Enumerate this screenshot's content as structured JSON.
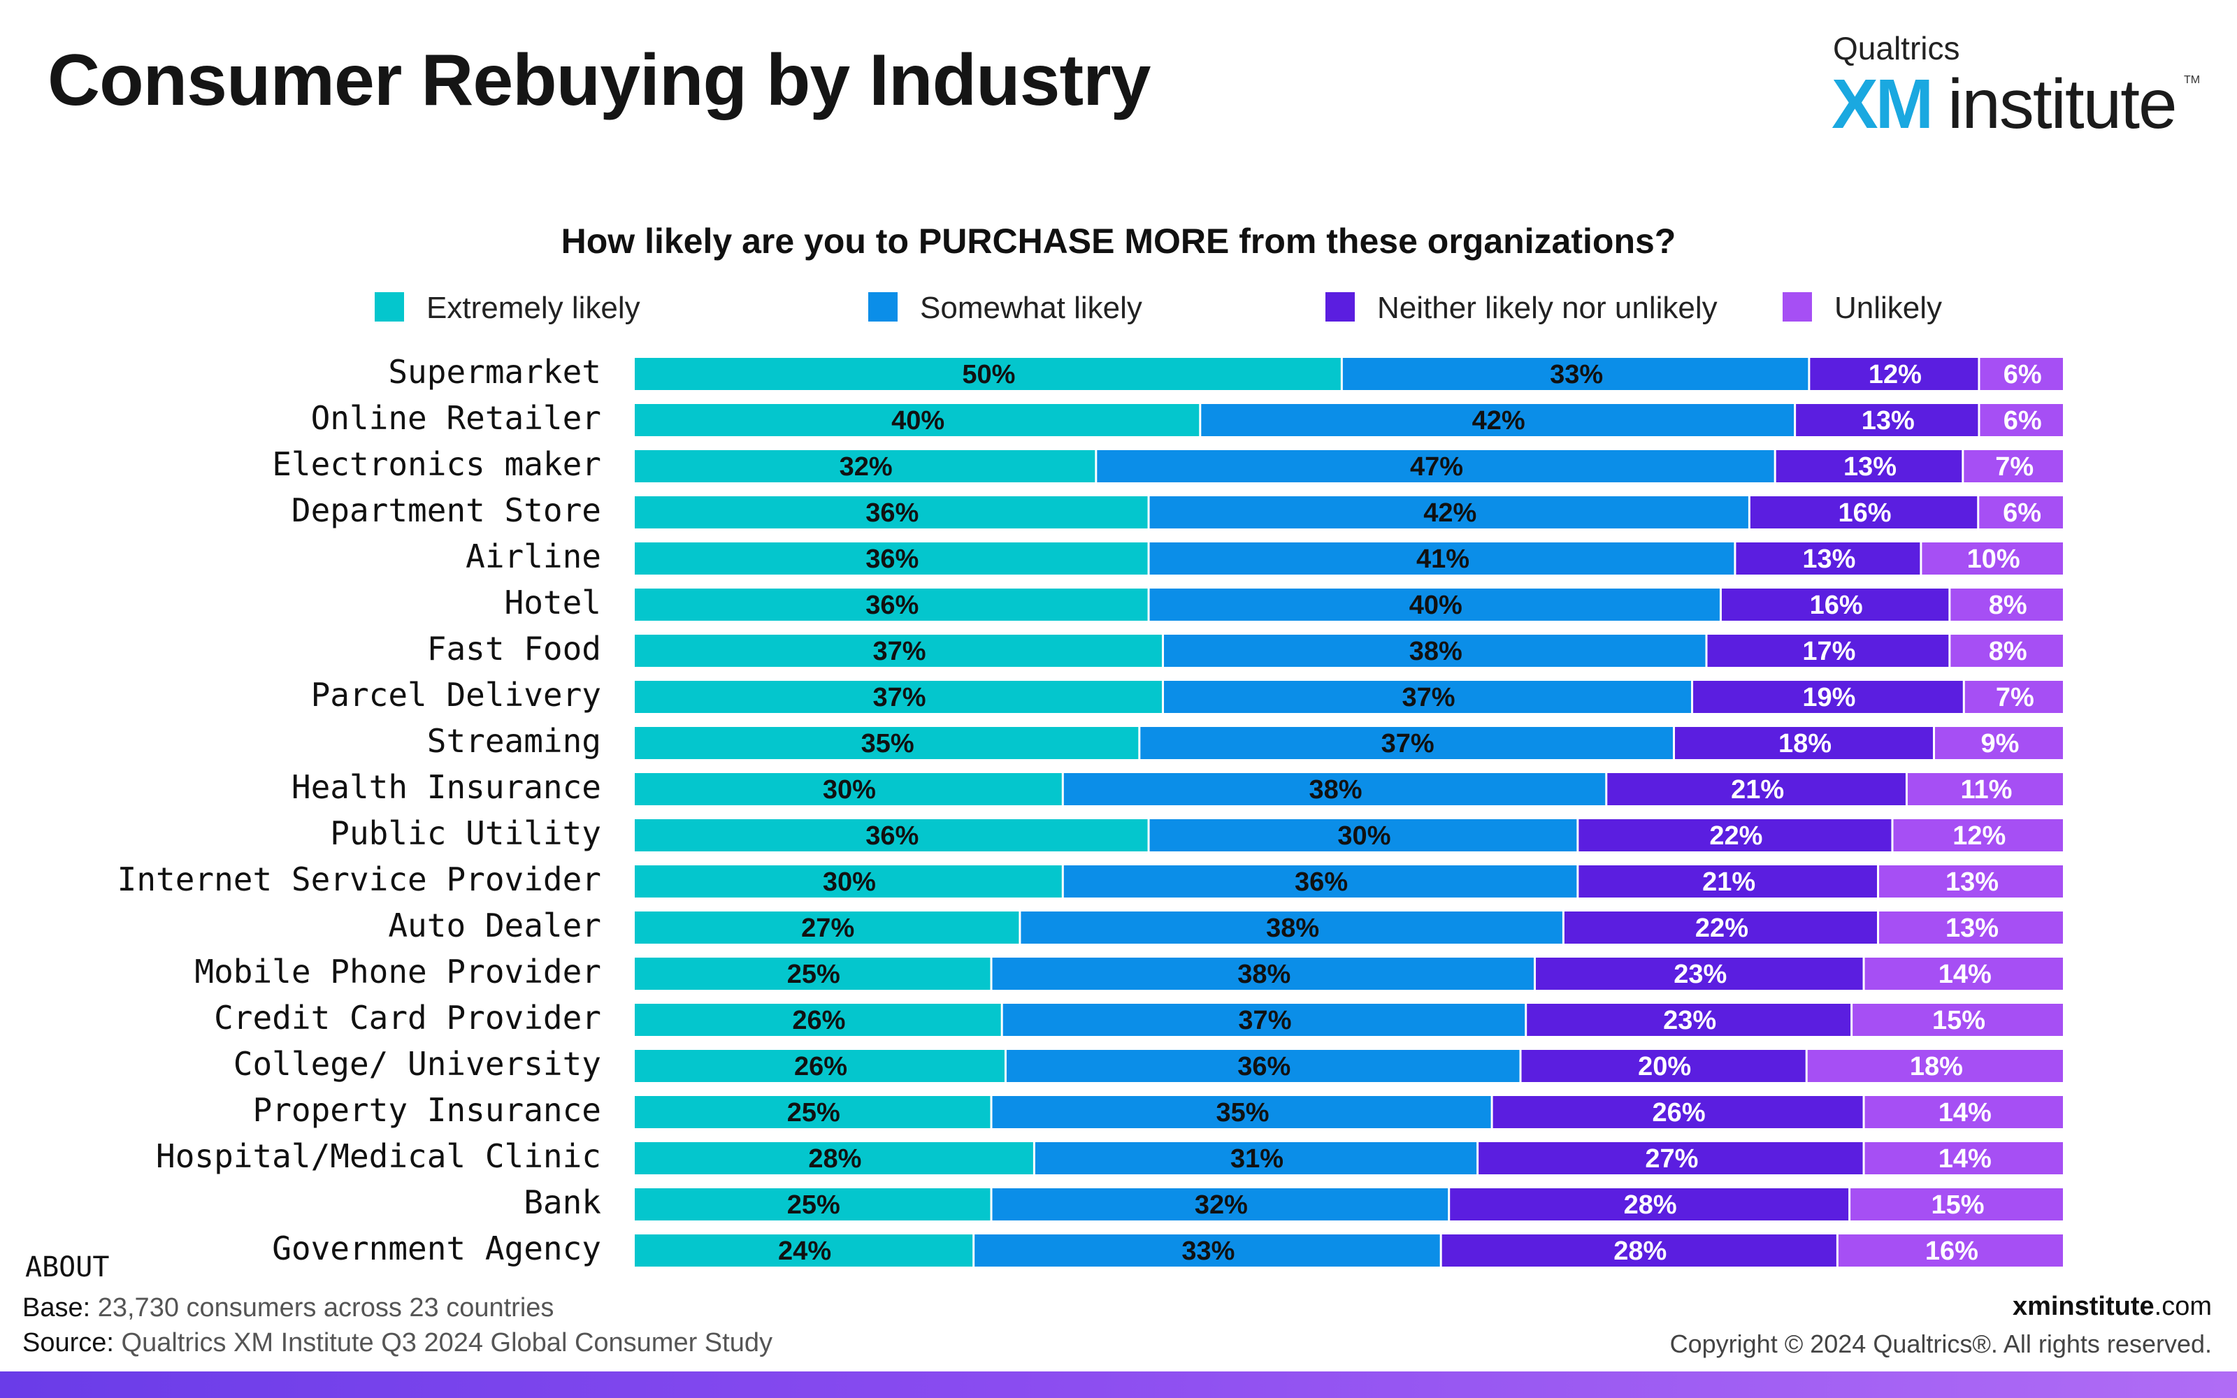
{
  "page": {
    "title": "Consumer Rebuying by Industry",
    "about_label": "ABOUT",
    "base_label": "Base:",
    "base_text": "23,730 consumers across 23 countries",
    "source_label": "Source:",
    "source_text": "Qualtrics XM Institute Q3 2024 Global Consumer Study",
    "site_bold": "xminstitute",
    "site_rest": ".com",
    "copyright": "Copyright © 2024 Qualtrics®. All rights reserved."
  },
  "logo": {
    "small_text": "Qualtrics",
    "xm_text": "XM",
    "institute_text": "institute",
    "tm": "TM"
  },
  "colors": {
    "extremely_likely": "#04c6cd",
    "somewhat_likely": "#0b8ee8",
    "neither": "#5b1ee0",
    "unlikely": "#a64ff4"
  },
  "chart_data": {
    "type": "bar",
    "orientation": "horizontal",
    "stacked": true,
    "title": "How likely are you to PURCHASE MORE from these organizations?",
    "legend_position": "top",
    "grid": false,
    "xlim": [
      0,
      100
    ],
    "categories": [
      "Supermarket",
      "Online Retailer",
      "Electronics maker",
      "Department Store",
      "Airline",
      "Hotel",
      "Fast Food",
      "Parcel Delivery",
      "Streaming",
      "Health Insurance",
      "Public Utility",
      "Internet Service Provider",
      "Auto Dealer",
      "Mobile Phone Provider",
      "Credit Card Provider",
      "College/ University",
      "Property Insurance",
      "Hospital/Medical Clinic",
      "Bank",
      "Government Agency"
    ],
    "series": [
      {
        "name": "Extremely likely",
        "color": "#04c6cd",
        "values": [
          50,
          40,
          32,
          36,
          36,
          36,
          37,
          37,
          35,
          30,
          36,
          30,
          27,
          25,
          26,
          26,
          25,
          28,
          25,
          24
        ]
      },
      {
        "name": "Somewhat likely",
        "color": "#0b8ee8",
        "values": [
          33,
          42,
          47,
          42,
          41,
          40,
          38,
          37,
          37,
          38,
          30,
          36,
          38,
          38,
          37,
          36,
          35,
          31,
          32,
          33
        ]
      },
      {
        "name": "Neither likely nor unlikely",
        "color": "#5b1ee0",
        "values": [
          12,
          13,
          13,
          16,
          13,
          16,
          17,
          19,
          18,
          21,
          22,
          21,
          22,
          23,
          23,
          20,
          26,
          27,
          28,
          28
        ]
      },
      {
        "name": "Unlikely",
        "color": "#a64ff4",
        "values": [
          6,
          6,
          7,
          6,
          10,
          8,
          8,
          7,
          9,
          11,
          12,
          13,
          13,
          14,
          15,
          18,
          14,
          14,
          15,
          16
        ]
      }
    ],
    "value_suffix": "%"
  }
}
